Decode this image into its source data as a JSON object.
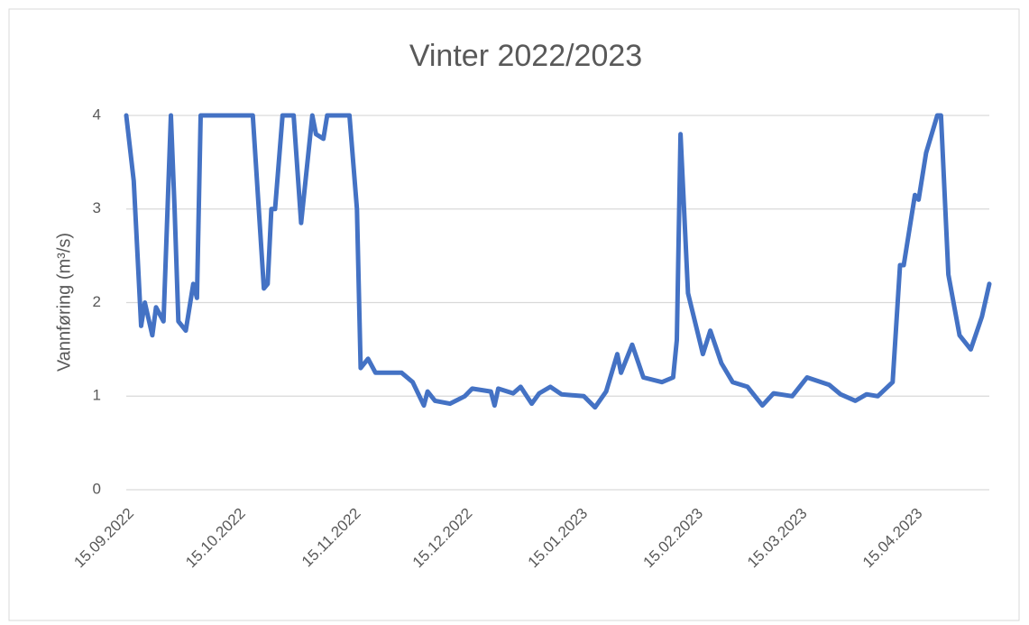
{
  "chart_data": {
    "type": "line",
    "title": "Vinter 2022/2023",
    "y_label": "Vannføring (m³/s)",
    "x": [
      "15.09.2022",
      "17.09.2022",
      "19.09.2022",
      "20.09.2022",
      "22.09.2022",
      "23.09.2022",
      "25.09.2022",
      "27.09.2022",
      "28.09.2022",
      "29.09.2022",
      "01.10.2022",
      "03.10.2022",
      "04.10.2022",
      "05.10.2022",
      "19.10.2022",
      "22.10.2022",
      "23.10.2022",
      "24.10.2022",
      "25.10.2022",
      "27.10.2022",
      "30.10.2022",
      "01.11.2022",
      "04.11.2022",
      "05.11.2022",
      "07.11.2022",
      "08.11.2022",
      "14.11.2022",
      "16.11.2022",
      "17.11.2022",
      "19.11.2022",
      "21.11.2022",
      "25.11.2022",
      "28.11.2022",
      "01.12.2022",
      "04.12.2022",
      "05.12.2022",
      "07.12.2022",
      "11.12.2022",
      "15.12.2022",
      "17.12.2022",
      "22.12.2022",
      "23.12.2022",
      "24.12.2022",
      "28.12.2022",
      "30.12.2022",
      "02.01.2023",
      "04.01.2023",
      "07.01.2023",
      "10.01.2023",
      "16.01.2023",
      "19.01.2023",
      "22.01.2023",
      "25.01.2023",
      "26.01.2023",
      "29.01.2023",
      "01.02.2023",
      "06.02.2023",
      "09.02.2023",
      "10.02.2023",
      "11.02.2023",
      "13.02.2023",
      "17.02.2023",
      "19.02.2023",
      "22.02.2023",
      "25.02.2023",
      "01.03.2023",
      "05.03.2023",
      "08.03.2023",
      "13.03.2023",
      "17.03.2023",
      "23.03.2023",
      "26.03.2023",
      "30.03.2023",
      "02.04.2023",
      "05.04.2023",
      "09.04.2023",
      "11.04.2023",
      "12.04.2023",
      "15.04.2023",
      "16.04.2023",
      "18.04.2023",
      "21.04.2023",
      "22.04.2023",
      "24.04.2023",
      "27.04.2023",
      "30.04.2023",
      "03.05.2023",
      "05.05.2023"
    ],
    "series": [
      {
        "name": "Vannføring",
        "color": "#4472c4",
        "values": [
          4,
          3.3,
          1.75,
          2.0,
          1.65,
          1.95,
          1.8,
          4,
          3.0,
          1.8,
          1.7,
          2.2,
          2.05,
          4,
          4,
          2.15,
          2.2,
          3.0,
          3.0,
          4,
          4,
          2.85,
          4,
          3.8,
          3.75,
          4,
          4,
          3.0,
          1.3,
          1.4,
          1.25,
          1.25,
          1.25,
          1.15,
          0.9,
          1.05,
          0.95,
          0.92,
          1.0,
          1.08,
          1.05,
          0.9,
          1.08,
          1.03,
          1.1,
          0.92,
          1.03,
          1.1,
          1.02,
          1.0,
          0.88,
          1.05,
          1.45,
          1.25,
          1.55,
          1.2,
          1.15,
          1.2,
          1.6,
          3.8,
          2.1,
          1.45,
          1.7,
          1.35,
          1.15,
          1.1,
          0.9,
          1.03,
          1.0,
          1.2,
          1.12,
          1.02,
          0.95,
          1.02,
          1.0,
          1.15,
          2.4,
          2.4,
          3.15,
          3.1,
          3.6,
          4,
          4,
          2.3,
          1.65,
          1.5,
          1.85,
          2.2
        ]
      }
    ],
    "xlim": [
      "15.09.2022",
      "05.05.2023"
    ],
    "xticks": [
      "15.09.2022",
      "15.10.2022",
      "15.11.2022",
      "15.12.2022",
      "15.01.2023",
      "15.02.2023",
      "15.03.2023",
      "15.04.2023"
    ],
    "ylim": [
      0,
      4
    ],
    "yticks": [
      0,
      1,
      2,
      3,
      4
    ],
    "grid": true
  }
}
